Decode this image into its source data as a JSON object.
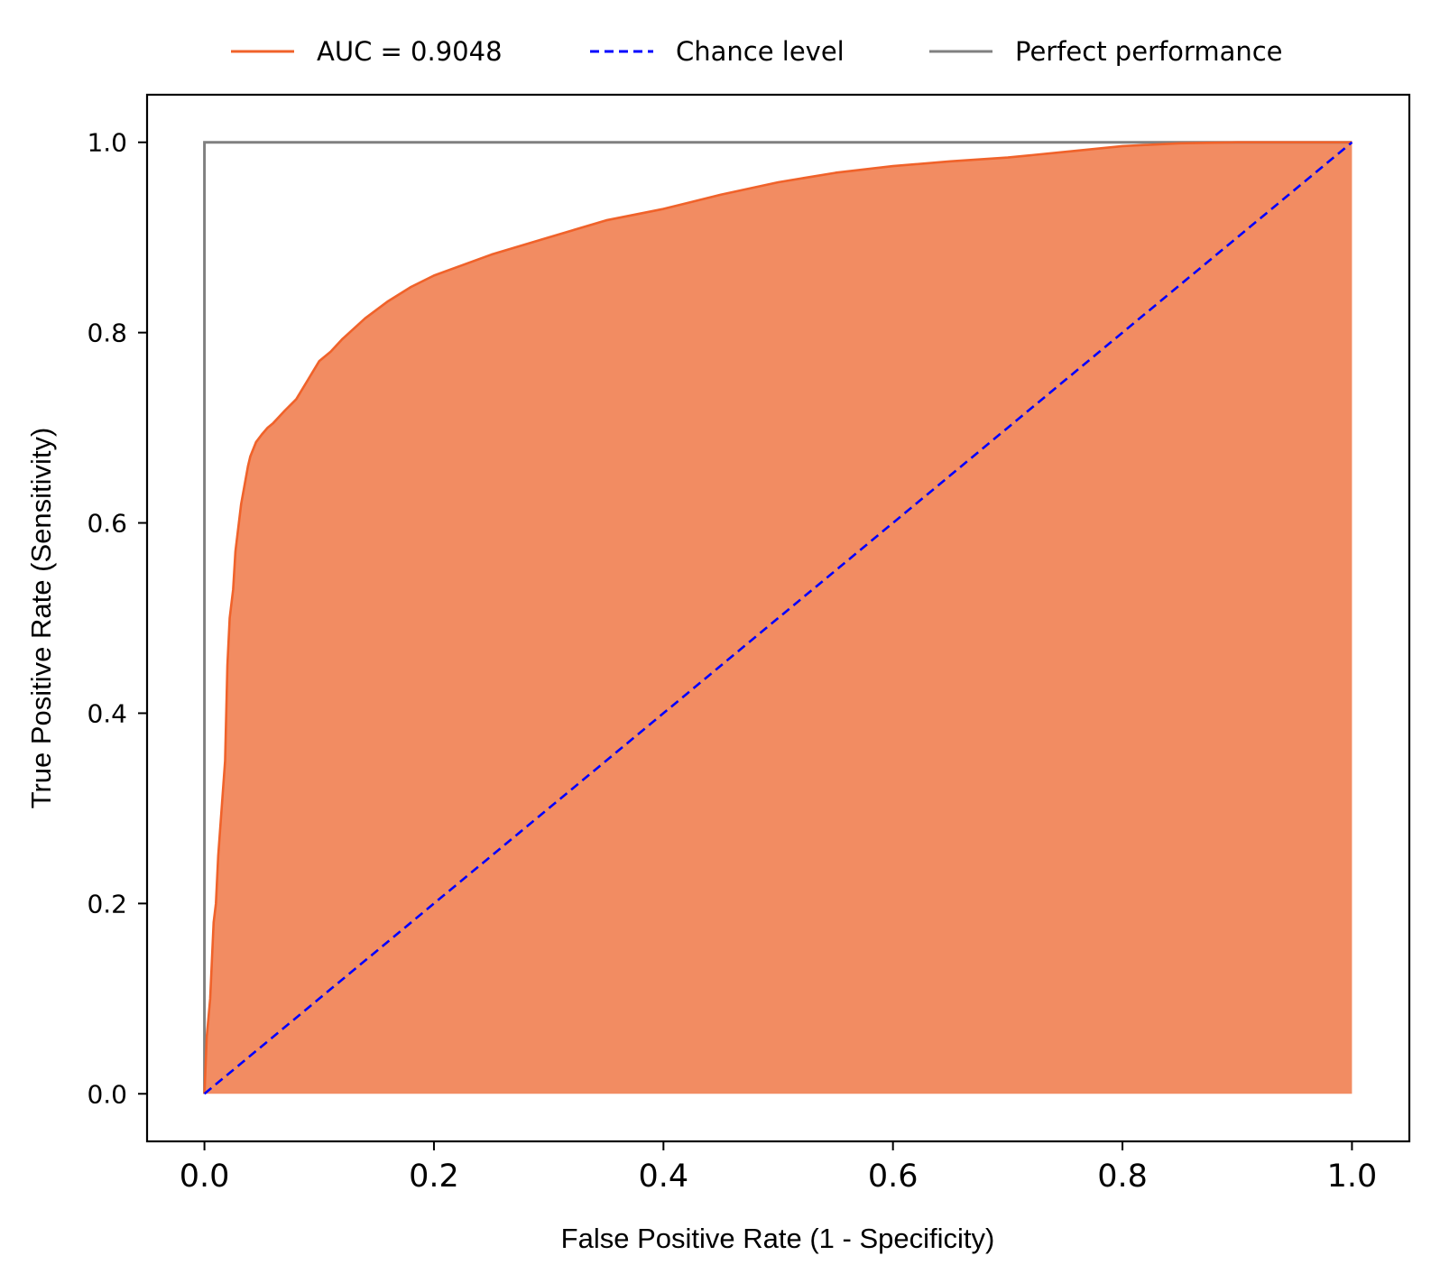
{
  "chart_data": {
    "type": "area",
    "xlabel": "False Positive Rate (1 - Specificity)",
    "ylabel": "True Positive Rate (Sensitivity)",
    "xlim": [
      -0.05,
      1.05
    ],
    "ylim": [
      -0.05,
      1.05
    ],
    "x_ticks": [
      "0.0",
      "0.2",
      "0.4",
      "0.6",
      "0.8",
      "1.0"
    ],
    "y_ticks": [
      "0.0",
      "0.2",
      "0.4",
      "0.6",
      "0.8",
      "1.0"
    ],
    "grid": false,
    "legend_position": "top-center, above plot",
    "series": [
      {
        "name": "AUC = 0.9048",
        "style": "solid line with filled area below",
        "color": "#f0622a",
        "fill_color": "#f28c62",
        "x": [
          0.0,
          0.002,
          0.005,
          0.008,
          0.01,
          0.012,
          0.015,
          0.018,
          0.02,
          0.022,
          0.025,
          0.027,
          0.03,
          0.032,
          0.035,
          0.038,
          0.04,
          0.045,
          0.05,
          0.055,
          0.06,
          0.07,
          0.08,
          0.09,
          0.095,
          0.1,
          0.11,
          0.12,
          0.14,
          0.16,
          0.18,
          0.2,
          0.25,
          0.3,
          0.35,
          0.4,
          0.45,
          0.5,
          0.55,
          0.6,
          0.65,
          0.7,
          0.75,
          0.8,
          0.85,
          0.9,
          0.95,
          1.0
        ],
        "y": [
          0.0,
          0.06,
          0.1,
          0.18,
          0.2,
          0.25,
          0.3,
          0.35,
          0.45,
          0.5,
          0.53,
          0.57,
          0.6,
          0.62,
          0.64,
          0.66,
          0.67,
          0.685,
          0.693,
          0.7,
          0.705,
          0.718,
          0.73,
          0.75,
          0.76,
          0.77,
          0.78,
          0.793,
          0.815,
          0.833,
          0.848,
          0.86,
          0.882,
          0.9,
          0.918,
          0.93,
          0.945,
          0.958,
          0.968,
          0.975,
          0.98,
          0.984,
          0.99,
          0.996,
          0.999,
          1.0,
          1.0,
          1.0
        ]
      },
      {
        "name": "Chance level",
        "style": "dashed",
        "color": "#0000ff",
        "x": [
          0.0,
          1.0
        ],
        "y": [
          0.0,
          1.0
        ]
      },
      {
        "name": "Perfect performance",
        "style": "solid",
        "color": "#808080",
        "x": [
          0.0,
          0.0,
          1.0
        ],
        "y": [
          0.0,
          1.0,
          1.0
        ]
      }
    ]
  }
}
